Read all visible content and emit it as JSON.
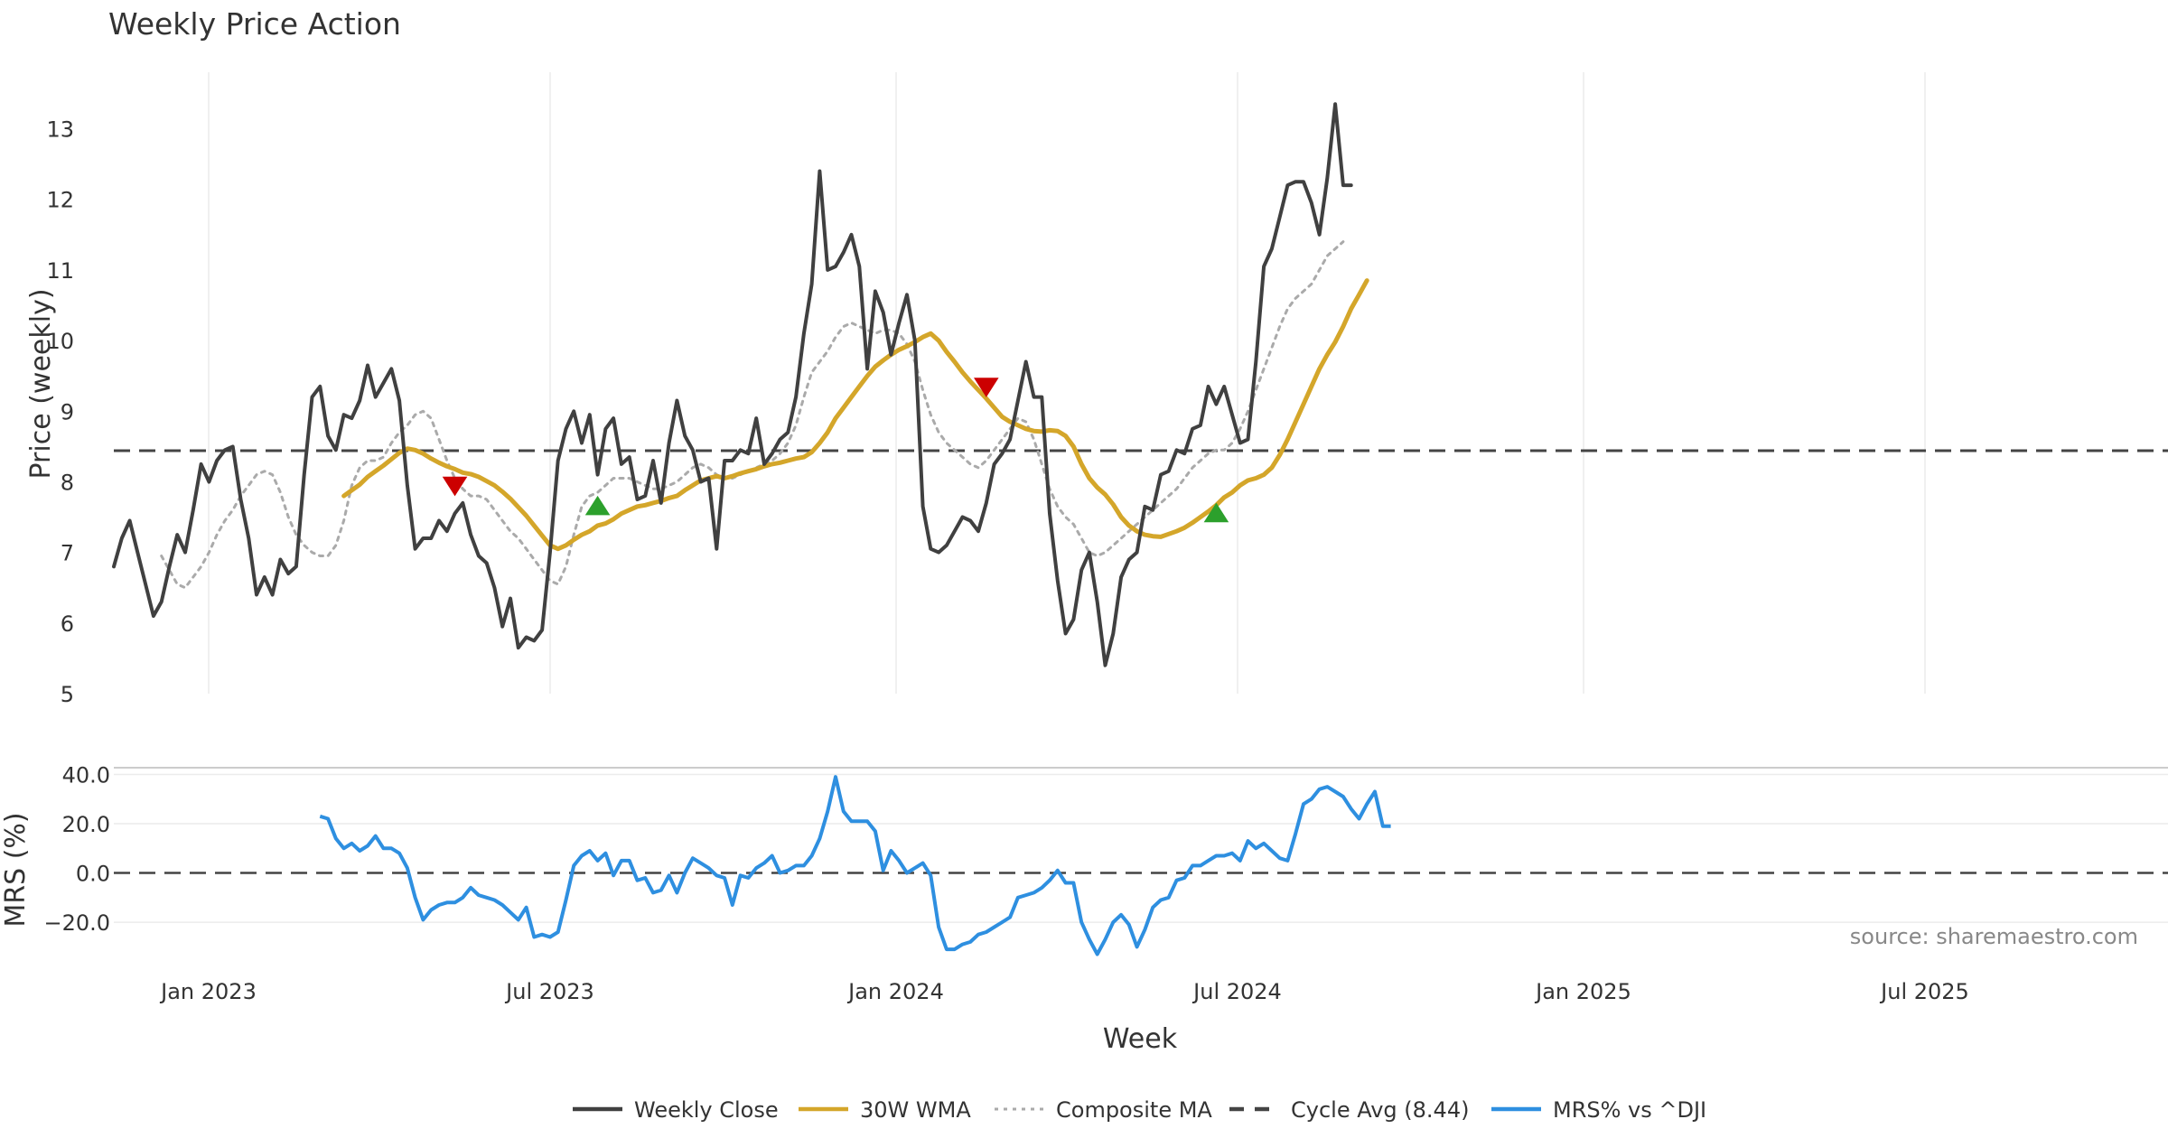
{
  "chart_data": {
    "title": "Weekly Price Action",
    "type": "line",
    "xlabel": "Week",
    "x_ticks": [
      "Jan 2023",
      "Jul 2023",
      "Jan 2024",
      "Jul 2024",
      "Jan 2025",
      "Jul 2025"
    ],
    "source": "source: sharemaestro.com",
    "price_panel": {
      "ylabel": "Price (weekly)",
      "ylim": [
        5,
        13.8
      ],
      "y_ticks": [
        "5",
        "6",
        "7",
        "8",
        "9",
        "10",
        "11",
        "12",
        "13"
      ],
      "cycle_avg": 8.44,
      "series": [
        {
          "name": "Weekly Close",
          "color": "#404040",
          "style": "solid",
          "values": [
            6.8,
            7.2,
            7.45,
            7.0,
            6.55,
            6.1,
            6.3,
            6.8,
            7.25,
            7.0,
            7.6,
            8.25,
            8.0,
            8.3,
            8.45,
            8.5,
            7.75,
            7.2,
            6.4,
            6.65,
            6.4,
            6.9,
            6.7,
            6.8,
            8.1,
            9.2,
            9.35,
            8.65,
            8.45,
            8.95,
            8.9,
            9.15,
            9.65,
            9.2,
            9.4,
            9.6,
            9.15,
            7.95,
            7.05,
            7.2,
            7.2,
            7.45,
            7.3,
            7.55,
            7.7,
            7.25,
            6.95,
            6.85,
            6.5,
            5.95,
            6.35,
            5.65,
            5.8,
            5.75,
            5.9,
            7.0,
            8.3,
            8.75,
            9.0,
            8.55,
            8.95,
            8.1,
            8.75,
            8.9,
            8.25,
            8.35,
            7.75,
            7.8,
            8.3,
            7.7,
            8.55,
            9.15,
            8.65,
            8.45,
            8.0,
            8.05,
            7.05,
            8.3,
            8.3,
            8.45,
            8.4,
            8.9,
            8.25,
            8.4,
            8.6,
            8.7,
            9.2,
            10.1,
            10.8,
            12.4,
            11.0,
            11.05,
            11.25,
            11.5,
            11.05,
            9.6,
            10.7,
            10.4,
            9.8,
            10.25,
            10.65,
            10.0,
            7.65,
            7.05,
            7.0,
            7.1,
            7.3,
            7.5,
            7.45,
            7.3,
            7.7,
            8.25,
            8.4,
            8.6,
            9.15,
            9.7,
            9.2,
            9.2,
            7.55,
            6.6,
            5.85,
            6.05,
            6.75,
            7.0,
            6.3,
            5.4,
            5.85,
            6.65,
            6.9,
            7.0,
            7.65,
            7.6,
            8.1,
            8.15,
            8.45,
            8.4,
            8.75,
            8.8,
            9.35,
            9.1,
            9.35,
            8.95,
            8.55,
            8.6,
            9.7,
            11.05,
            11.3,
            11.75,
            12.2,
            12.25,
            12.25,
            11.95,
            11.5,
            12.3,
            13.35,
            12.2,
            12.2
          ]
        },
        {
          "name": "30W WMA",
          "color": "#D4A62A",
          "style": "solid",
          "start": 29,
          "values": [
            7.8,
            7.88,
            7.96,
            8.07,
            8.15,
            8.23,
            8.32,
            8.41,
            8.47,
            8.45,
            8.4,
            8.33,
            8.27,
            8.22,
            8.18,
            8.13,
            8.11,
            8.07,
            8.01,
            7.95,
            7.86,
            7.76,
            7.64,
            7.52,
            7.38,
            7.24,
            7.1,
            7.05,
            7.1,
            7.18,
            7.25,
            7.3,
            7.38,
            7.41,
            7.47,
            7.55,
            7.6,
            7.65,
            7.67,
            7.7,
            7.73,
            7.77,
            7.8,
            7.88,
            7.95,
            8.02,
            8.05,
            8.08,
            8.05,
            8.08,
            8.12,
            8.15,
            8.18,
            8.22,
            8.25,
            8.27,
            8.3,
            8.33,
            8.35,
            8.42,
            8.55,
            8.7,
            8.9,
            9.05,
            9.2,
            9.35,
            9.5,
            9.63,
            9.72,
            9.8,
            9.87,
            9.92,
            9.98,
            10.05,
            10.1,
            10.0,
            9.84,
            9.7,
            9.55,
            9.42,
            9.3,
            9.18,
            9.05,
            8.92,
            8.85,
            8.8,
            8.75,
            8.72,
            8.71,
            8.73,
            8.72,
            8.65,
            8.5,
            8.25,
            8.05,
            7.92,
            7.82,
            7.68,
            7.5,
            7.38,
            7.3,
            7.25,
            7.23,
            7.22,
            7.26,
            7.3,
            7.35,
            7.42,
            7.5,
            7.58,
            7.67,
            7.78,
            7.85,
            7.95,
            8.02,
            8.05,
            8.1,
            8.2,
            8.38,
            8.6,
            8.85,
            9.1,
            9.35,
            9.6,
            9.8,
            9.98,
            10.2,
            10.45,
            10.65,
            10.85
          ]
        },
        {
          "name": "Composite MA",
          "color": "#aaaaaa",
          "style": "dotted",
          "start": 6,
          "values": [
            6.95,
            6.75,
            6.55,
            6.5,
            6.65,
            6.8,
            7.0,
            7.25,
            7.45,
            7.6,
            7.8,
            7.95,
            8.1,
            8.15,
            8.1,
            7.85,
            7.5,
            7.25,
            7.1,
            7.0,
            6.95,
            6.95,
            7.1,
            7.45,
            7.95,
            8.2,
            8.3,
            8.3,
            8.35,
            8.55,
            8.7,
            8.8,
            8.95,
            9.0,
            8.9,
            8.6,
            8.3,
            8.05,
            7.9,
            7.8,
            7.8,
            7.75,
            7.6,
            7.45,
            7.3,
            7.2,
            7.05,
            6.9,
            6.75,
            6.6,
            6.55,
            6.8,
            7.25,
            7.65,
            7.8,
            7.85,
            7.95,
            8.05,
            8.05,
            8.05,
            8.0,
            7.95,
            7.9,
            7.9,
            7.95,
            8.0,
            8.1,
            8.2,
            8.25,
            8.2,
            8.1,
            8.05,
            8.05,
            8.1,
            8.15,
            8.2,
            8.25,
            8.3,
            8.4,
            8.55,
            8.8,
            9.2,
            9.55,
            9.7,
            9.85,
            10.05,
            10.2,
            10.25,
            10.2,
            10.15,
            10.1,
            10.15,
            10.15,
            10.1,
            9.95,
            9.7,
            9.3,
            8.95,
            8.7,
            8.55,
            8.45,
            8.35,
            8.25,
            8.2,
            8.3,
            8.45,
            8.6,
            8.75,
            8.9,
            8.85,
            8.6,
            8.25,
            7.9,
            7.65,
            7.5,
            7.4,
            7.2,
            7.0,
            6.95,
            7.0,
            7.1,
            7.2,
            7.3,
            7.4,
            7.5,
            7.6,
            7.7,
            7.8,
            7.9,
            8.05,
            8.2,
            8.3,
            8.4,
            8.45,
            8.45,
            8.55,
            8.75,
            9.0,
            9.3,
            9.6,
            9.9,
            10.2,
            10.45,
            10.6,
            10.7,
            10.8,
            11.0,
            11.2,
            11.3,
            11.4
          ]
        }
      ],
      "markers": [
        {
          "type": "sell",
          "week": 43,
          "value": 7.95,
          "color": "#CC0000"
        },
        {
          "type": "buy",
          "week": 61,
          "value": 7.65,
          "color": "#2CA02C"
        },
        {
          "type": "sell",
          "week": 110,
          "value": 9.35,
          "color": "#CC0000"
        },
        {
          "type": "buy",
          "week": 139,
          "value": 7.55,
          "color": "#2CA02C"
        }
      ]
    },
    "mrs_panel": {
      "ylabel": "MRS (%)",
      "ylim": [
        -35,
        42
      ],
      "y_ticks": [
        "40.0",
        "20.0",
        "0.0",
        "−20.0"
      ],
      "series": [
        {
          "name": "MRS% vs ^DJI",
          "color": "#2E8FE0",
          "style": "solid",
          "start": 26,
          "values": [
            23,
            22,
            14,
            10,
            12,
            9,
            11,
            15,
            10,
            10,
            8,
            2,
            -10,
            -19,
            -15,
            -13,
            -12,
            -12,
            -10,
            -6,
            -9,
            -10,
            -11,
            -13,
            -16,
            -19,
            -14,
            -26,
            -25,
            -26,
            -24,
            -11,
            3,
            7,
            9,
            5,
            8,
            -1,
            5,
            5,
            -3,
            -2,
            -8,
            -7,
            -1,
            -8,
            0,
            6,
            4,
            2,
            -1,
            -2,
            -13,
            -1,
            -2,
            2,
            4,
            7,
            0,
            1,
            3,
            3,
            7,
            14,
            25,
            39,
            25,
            21,
            21,
            21,
            17,
            1,
            9,
            5,
            0,
            2,
            4,
            -1,
            -22,
            -31,
            -31,
            -29,
            -28,
            -25,
            -24,
            -22,
            -20,
            -18,
            -10,
            -9,
            -8,
            -6,
            -3,
            1,
            -4,
            -4,
            -20,
            -27,
            -33,
            -27,
            -20,
            -17,
            -21,
            -30,
            -23,
            -14,
            -11,
            -10,
            -3,
            -2,
            3,
            3,
            5,
            7,
            7,
            8,
            5,
            13,
            10,
            12,
            9,
            6,
            5,
            16,
            28,
            30,
            34,
            35,
            33,
            31,
            26,
            22,
            28,
            33,
            19,
            19
          ]
        }
      ]
    },
    "legend": [
      {
        "label": "Weekly Close",
        "color": "#404040",
        "style": "solid"
      },
      {
        "label": "30W WMA",
        "color": "#D4A62A",
        "style": "solid"
      },
      {
        "label": "Composite MA",
        "color": "#aaaaaa",
        "style": "dotted"
      },
      {
        "label": "Cycle Avg (8.44)",
        "color": "#444444",
        "style": "dashed"
      },
      {
        "label": "MRS% vs ^DJI",
        "color": "#2E8FE0",
        "style": "solid"
      }
    ]
  }
}
